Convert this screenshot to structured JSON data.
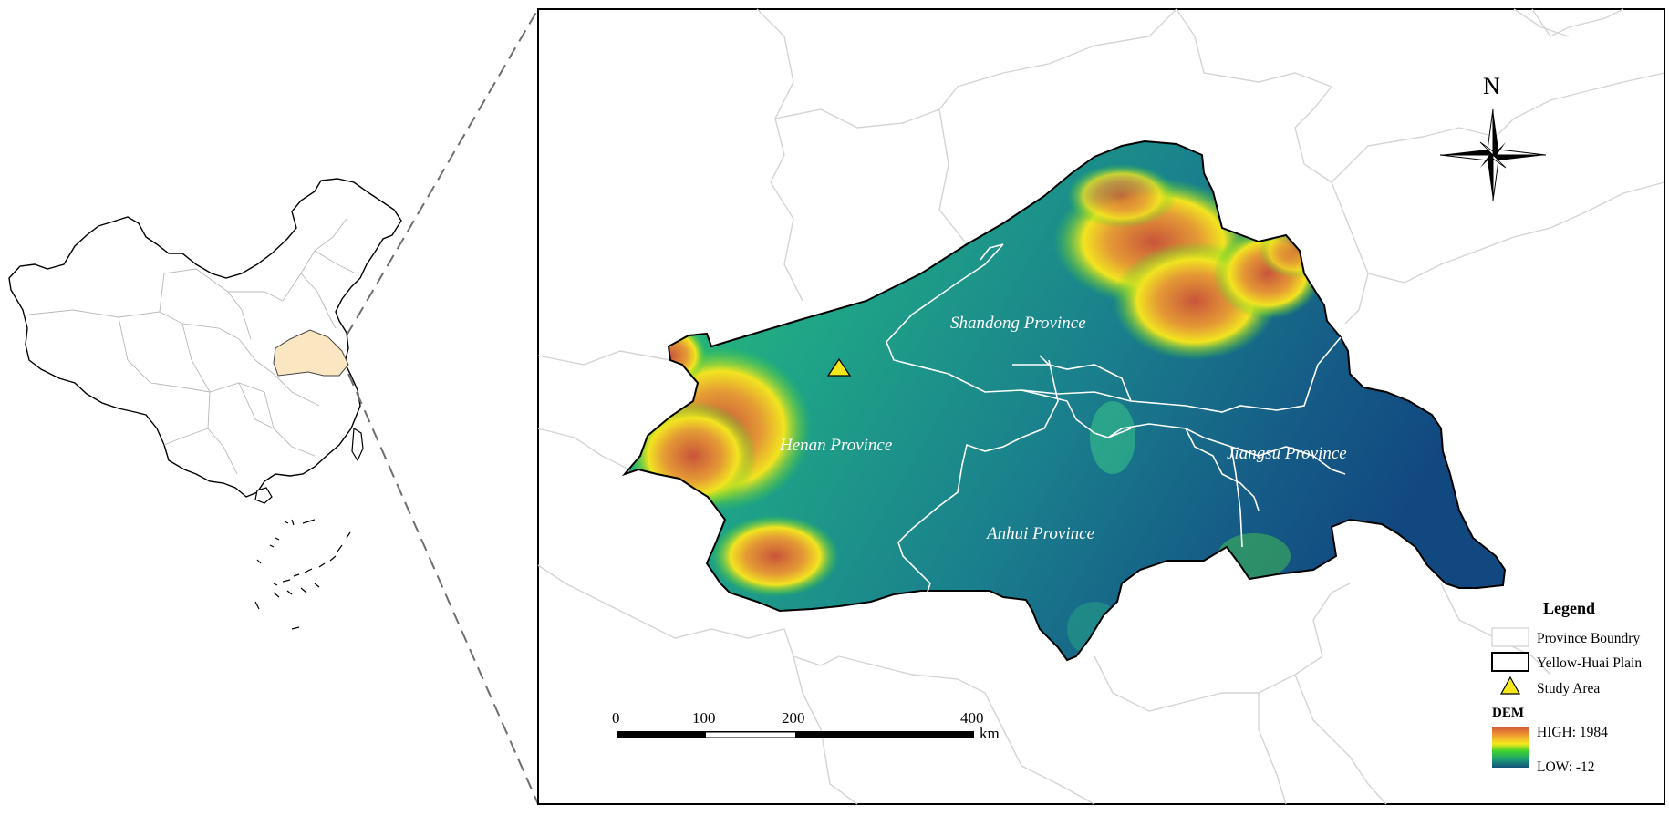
{
  "map": {
    "provinces": [
      {
        "name": "Shandong Province"
      },
      {
        "name": "Henan Province"
      },
      {
        "name": "Jiangsu Province"
      },
      {
        "name": "Anhui Province"
      }
    ],
    "north_arrow": {
      "label": "N"
    },
    "scale_bar": {
      "ticks": [
        "0",
        "100",
        "200",
        "400"
      ],
      "unit": "km"
    },
    "legend": {
      "title": "Legend",
      "items": [
        {
          "label": "Province Boundry",
          "symbol": "province-boundary"
        },
        {
          "label": "Yellow-Huai Plain",
          "symbol": "plain-outline"
        },
        {
          "label": "Study Area",
          "symbol": "yellow-triangle"
        }
      ],
      "dem": {
        "title": "DEM",
        "high_label": "HIGH: 1984",
        "low_label": "LOW: -12",
        "colors": [
          "#d2543a",
          "#f0a030",
          "#f4e81c",
          "#3cd22e",
          "#1e9e72",
          "#12507a"
        ]
      }
    },
    "colors": {
      "highlight_region": "#fbe6c2",
      "study_area_marker": "#f5e81a",
      "province_boundary": "#d4d4d4"
    }
  }
}
